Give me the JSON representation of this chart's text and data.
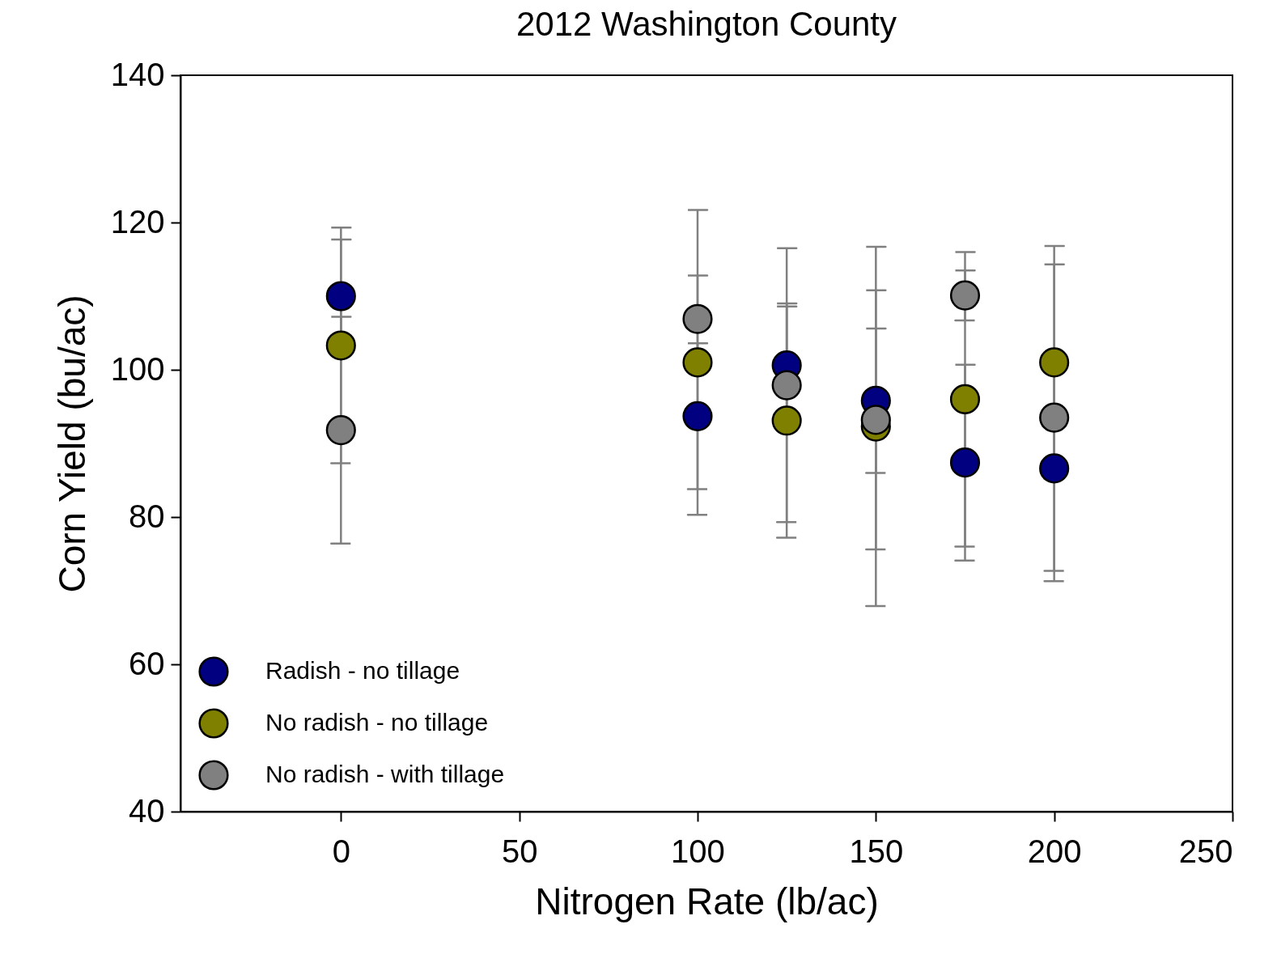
{
  "chart_data": {
    "type": "scatter",
    "title": "2012 Washington County",
    "xlabel": "Nitrogen Rate (lb/ac)",
    "ylabel": "Corn Yield (bu/ac)",
    "x": [
      0,
      100,
      125,
      150,
      175,
      200
    ],
    "series": [
      {
        "name": "Radish - no tillage",
        "color": "#000080",
        "values": [
          110,
          93.7,
          100.6,
          95.8,
          87.4,
          86.6
        ],
        "errors": [
          7.7,
          9.9,
          8,
          9.8,
          13.3,
          15.3
        ]
      },
      {
        "name": "No radish - no tillage",
        "color": "#808000",
        "values": [
          103.3,
          101,
          93.1,
          92.3,
          96,
          101
        ],
        "errors": [
          16,
          20.7,
          15.9,
          24.4,
          20,
          15.8
        ]
      },
      {
        "name": "No radish - with tillage",
        "color": "#808080",
        "values": [
          91.8,
          106.9,
          97.9,
          93.2,
          110.1,
          93.5
        ],
        "errors": [
          15.4,
          5.9,
          18.6,
          17.6,
          3.4,
          20.8
        ]
      }
    ],
    "xlim": [
      -45,
      250
    ],
    "xticks": [
      0,
      50,
      100,
      150,
      200,
      250
    ],
    "ylim": [
      40,
      140
    ],
    "yticks": [
      40,
      60,
      80,
      100,
      120,
      140
    ],
    "grid": false,
    "legend": "bottom left",
    "marker": "circle"
  }
}
